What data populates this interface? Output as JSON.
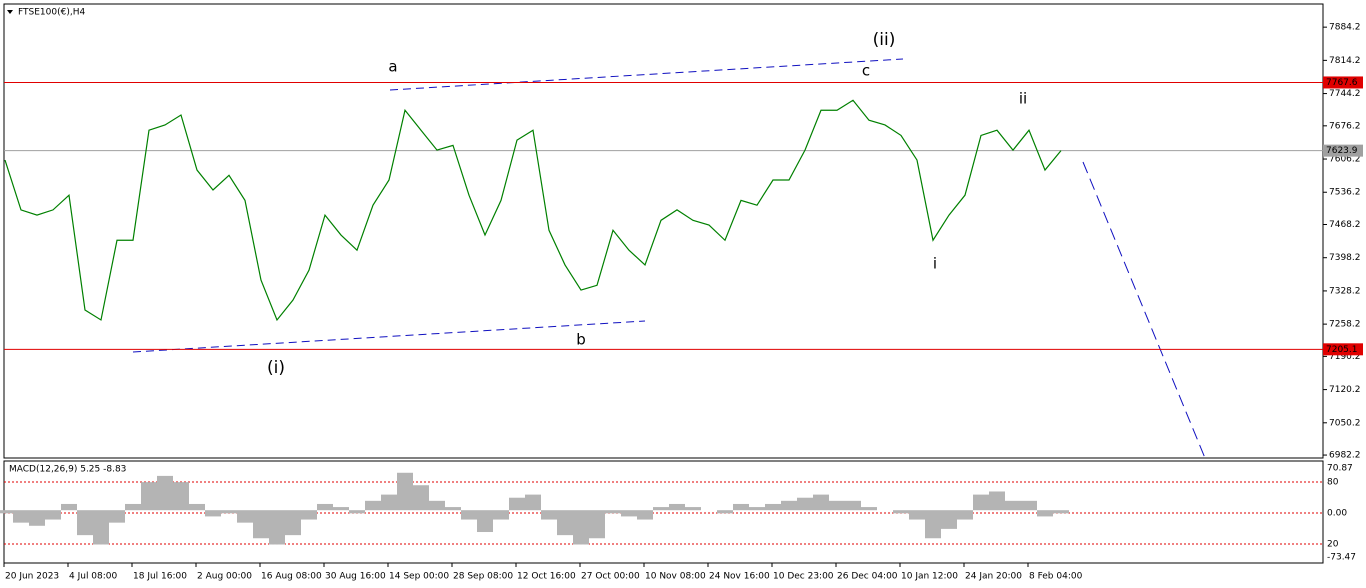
{
  "chart_data": {
    "type": "line",
    "title": "FTSE100(€),H4",
    "series": [
      {
        "name": "FTSE100(€)",
        "color": "#008000",
        "values": [
          7604,
          7499,
          7488,
          7499,
          7530,
          7288,
          7267,
          7435,
          7435,
          7667,
          7678,
          7699,
          7583,
          7541,
          7572,
          7519,
          7351,
          7267,
          7309,
          7372,
          7488,
          7446,
          7414,
          7509,
          7562,
          7709,
          7667,
          7625,
          7635,
          7530,
          7446,
          7519,
          7646,
          7667,
          7456,
          7383,
          7330,
          7340,
          7456,
          7414,
          7383,
          7477,
          7499,
          7477,
          7467,
          7435,
          7519,
          7509,
          7562,
          7562,
          7625,
          7709,
          7709,
          7730,
          7688,
          7678,
          7656,
          7604,
          7435,
          7488,
          7530,
          7656,
          7667,
          7625,
          7667,
          7583,
          7624
        ]
      }
    ],
    "xlabels": [
      "20 Jun 2023",
      "4 Jul 08:00",
      "18 Jul 16:00",
      "2 Aug 00:00",
      "16 Aug 08:00",
      "30 Aug 16:00",
      "14 Sep 00:00",
      "28 Sep 08:00",
      "12 Oct 16:00",
      "27 Oct 00:00",
      "10 Nov 08:00",
      "24 Nov 16:00",
      "10 Dec 23:00",
      "26 Dec 04:00",
      "10 Jan 12:00",
      "24 Jan 20:00",
      "8 Feb 04:00"
    ],
    "ylim": [
      6976,
      7933
    ],
    "yticks": [
      {
        "value": 7884.2,
        "label": "7884.2"
      },
      {
        "value": 7814.2,
        "label": "7814.2"
      },
      {
        "value": 7744.2,
        "label": "7744.2"
      },
      {
        "value": 7676.2,
        "label": "7676.2"
      },
      {
        "value": 7606.2,
        "label": "7606.2"
      },
      {
        "value": 7536.2,
        "label": "7536.2"
      },
      {
        "value": 7468.2,
        "label": "7468.2"
      },
      {
        "value": 7398.2,
        "label": "7398.2"
      },
      {
        "value": 7328.2,
        "label": "7328.2"
      },
      {
        "value": 7258.2,
        "label": "7258.2"
      },
      {
        "value": 7190.2,
        "label": "7190.2"
      },
      {
        "value": 7120.2,
        "label": "7120.2"
      },
      {
        "value": 7050.2,
        "label": "7050.2"
      },
      {
        "value": 6982.2,
        "label": "6982.2"
      }
    ],
    "hlines": [
      {
        "value": 7767.6,
        "color": "#e00000"
      },
      {
        "value": 7205.1,
        "color": "#e00000"
      },
      {
        "value": 7623.9,
        "color": "#a0a0a0"
      }
    ],
    "annotations": [
      {
        "text": "a",
        "color": "#e020e0"
      },
      {
        "text": "b",
        "color": "#e020e0"
      },
      {
        "text": "c",
        "color": "#e020e0"
      },
      {
        "text": "(i)",
        "color": "#1010c0"
      },
      {
        "text": "(ii)",
        "color": "#1010c0"
      },
      {
        "text": "i",
        "color": "#e020e0"
      },
      {
        "text": "ii",
        "color": "#e020e0"
      }
    ],
    "macd": {
      "label": "MACD(12,26,9) 5.25 -8.83",
      "color": "#b4b4b4",
      "ylim": [
        -73.47,
        70.87
      ],
      "axis_labels": [
        "70.87",
        "80",
        "0.00",
        "20",
        "-73.47"
      ],
      "values": [
        -5,
        -20,
        -25,
        -15,
        10,
        -40,
        -55,
        -20,
        10,
        45,
        55,
        45,
        10,
        -10,
        -5,
        -20,
        -45,
        -55,
        -40,
        -15,
        10,
        5,
        -5,
        15,
        25,
        60,
        40,
        15,
        5,
        -15,
        -35,
        -15,
        20,
        25,
        -15,
        -40,
        -55,
        -45,
        -5,
        -10,
        -15,
        5,
        10,
        5,
        0,
        -5,
        10,
        5,
        10,
        15,
        20,
        25,
        15,
        15,
        5,
        0,
        -5,
        -15,
        -45,
        -30,
        -15,
        25,
        30,
        15,
        15,
        -10,
        -5
      ]
    }
  }
}
